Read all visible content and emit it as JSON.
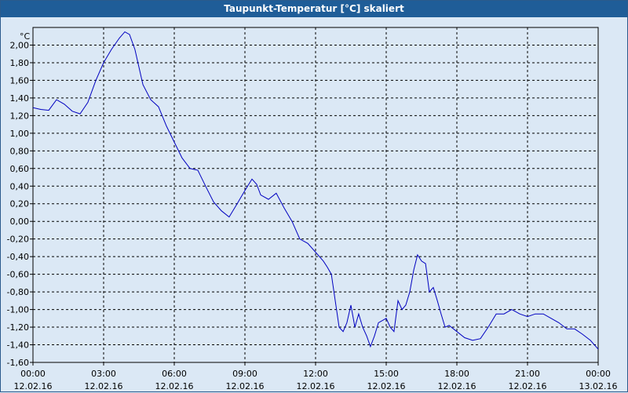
{
  "window": {
    "title": "Taupunkt-Temperatur [°C] skaliert"
  },
  "chart_data": {
    "type": "line",
    "title": "Taupunkt-Temperatur [°C] skaliert",
    "ylabel": "°C",
    "xlabel": "",
    "ylim": [
      -1.6,
      2.2
    ],
    "xlim_hours": [
      0,
      24
    ],
    "grid": true,
    "line_color": "#0000c0",
    "y_ticks": [
      "2,00",
      "1,80",
      "1,60",
      "1,40",
      "1,20",
      "1,00",
      "0,80",
      "0,60",
      "0,40",
      "0,20",
      "0,00",
      "-0,20",
      "-0,40",
      "-0,60",
      "-0,80",
      "-1,00",
      "-1,20",
      "-1,40",
      "-1,60"
    ],
    "y_tick_values": [
      2.0,
      1.8,
      1.6,
      1.4,
      1.2,
      1.0,
      0.8,
      0.6,
      0.4,
      0.2,
      0.0,
      -0.2,
      -0.4,
      -0.6,
      -0.8,
      -1.0,
      -1.2,
      -1.4,
      -1.6
    ],
    "x_ticks": [
      {
        "hour": 0,
        "time": "00:00",
        "date": "12.02.16"
      },
      {
        "hour": 3,
        "time": "03:00",
        "date": "12.02.16"
      },
      {
        "hour": 6,
        "time": "06:00",
        "date": "12.02.16"
      },
      {
        "hour": 9,
        "time": "09:00",
        "date": "12.02.16"
      },
      {
        "hour": 12,
        "time": "12:00",
        "date": "12.02.16"
      },
      {
        "hour": 15,
        "time": "15:00",
        "date": "12.02.16"
      },
      {
        "hour": 18,
        "time": "18:00",
        "date": "12.02.16"
      },
      {
        "hour": 21,
        "time": "21:00",
        "date": "12.02.16"
      },
      {
        "hour": 24,
        "time": "00:00",
        "date": "13.02.16"
      }
    ],
    "series": [
      {
        "points": [
          [
            0.0,
            1.29
          ],
          [
            0.33,
            1.27
          ],
          [
            0.67,
            1.26
          ],
          [
            1.0,
            1.38
          ],
          [
            1.33,
            1.33
          ],
          [
            1.67,
            1.25
          ],
          [
            2.0,
            1.22
          ],
          [
            2.33,
            1.35
          ],
          [
            2.67,
            1.6
          ],
          [
            3.0,
            1.8
          ],
          [
            3.33,
            1.95
          ],
          [
            3.67,
            2.08
          ],
          [
            3.9,
            2.15
          ],
          [
            4.1,
            2.12
          ],
          [
            4.33,
            1.95
          ],
          [
            4.5,
            1.75
          ],
          [
            4.67,
            1.55
          ],
          [
            5.0,
            1.38
          ],
          [
            5.33,
            1.3
          ],
          [
            5.67,
            1.08
          ],
          [
            6.0,
            0.9
          ],
          [
            6.33,
            0.72
          ],
          [
            6.67,
            0.6
          ],
          [
            7.0,
            0.58
          ],
          [
            7.33,
            0.4
          ],
          [
            7.67,
            0.22
          ],
          [
            8.0,
            0.12
          ],
          [
            8.33,
            0.05
          ],
          [
            8.67,
            0.2
          ],
          [
            9.0,
            0.35
          ],
          [
            9.3,
            0.48
          ],
          [
            9.5,
            0.42
          ],
          [
            9.67,
            0.3
          ],
          [
            10.0,
            0.25
          ],
          [
            10.33,
            0.32
          ],
          [
            10.67,
            0.15
          ],
          [
            11.0,
            0.0
          ],
          [
            11.33,
            -0.2
          ],
          [
            11.67,
            -0.25
          ],
          [
            12.0,
            -0.35
          ],
          [
            12.33,
            -0.45
          ],
          [
            12.5,
            -0.52
          ],
          [
            12.67,
            -0.6
          ],
          [
            13.0,
            -1.2
          ],
          [
            13.17,
            -1.25
          ],
          [
            13.33,
            -1.15
          ],
          [
            13.5,
            -0.95
          ],
          [
            13.67,
            -1.2
          ],
          [
            13.83,
            -1.05
          ],
          [
            14.0,
            -1.2
          ],
          [
            14.17,
            -1.3
          ],
          [
            14.33,
            -1.42
          ],
          [
            14.5,
            -1.3
          ],
          [
            14.67,
            -1.15
          ],
          [
            15.0,
            -1.1
          ],
          [
            15.17,
            -1.2
          ],
          [
            15.33,
            -1.25
          ],
          [
            15.5,
            -0.9
          ],
          [
            15.67,
            -1.0
          ],
          [
            15.83,
            -0.95
          ],
          [
            16.0,
            -0.8
          ],
          [
            16.17,
            -0.55
          ],
          [
            16.33,
            -0.38
          ],
          [
            16.5,
            -0.45
          ],
          [
            16.67,
            -0.48
          ],
          [
            16.83,
            -0.8
          ],
          [
            17.0,
            -0.75
          ],
          [
            17.17,
            -0.9
          ],
          [
            17.33,
            -1.05
          ],
          [
            17.5,
            -1.2
          ],
          [
            17.67,
            -1.18
          ],
          [
            18.0,
            -1.25
          ],
          [
            18.33,
            -1.32
          ],
          [
            18.67,
            -1.35
          ],
          [
            19.0,
            -1.33
          ],
          [
            19.33,
            -1.2
          ],
          [
            19.67,
            -1.05
          ],
          [
            20.0,
            -1.05
          ],
          [
            20.33,
            -1.0
          ],
          [
            20.67,
            -1.05
          ],
          [
            21.0,
            -1.08
          ],
          [
            21.33,
            -1.05
          ],
          [
            21.67,
            -1.05
          ],
          [
            22.0,
            -1.1
          ],
          [
            22.33,
            -1.15
          ],
          [
            22.67,
            -1.22
          ],
          [
            23.0,
            -1.22
          ],
          [
            23.33,
            -1.28
          ],
          [
            23.67,
            -1.35
          ],
          [
            24.0,
            -1.45
          ]
        ]
      }
    ]
  }
}
